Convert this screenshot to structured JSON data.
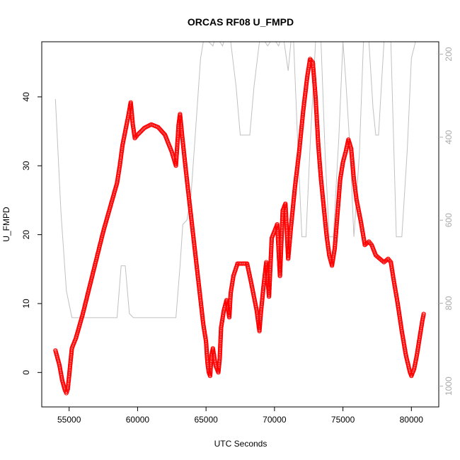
{
  "chart_data": {
    "type": "scatter",
    "title": "ORCAS RF08 U_FMPD",
    "xlabel": "UTC Seconds",
    "ylabel": "U_FMPD",
    "xlim": [
      53000,
      82000
    ],
    "ylim": [
      -5,
      48
    ],
    "x_ticks": [
      "55000",
      "60000",
      "65000",
      "70000",
      "75000",
      "80000"
    ],
    "y_ticks": [
      "0",
      "10",
      "20",
      "30",
      "40"
    ],
    "y2lim": [
      1050,
      170
    ],
    "y2_ticks": [
      "200",
      "400",
      "600",
      "800",
      "1000"
    ],
    "colors": {
      "primary": "#ff0000",
      "secondary": "#c0c0c0"
    },
    "series": [
      {
        "kind": "points",
        "color": "#ff0000",
        "points": [
          [
            54000,
            3.2
          ],
          [
            54300,
            1.0
          ],
          [
            54500,
            -1.2
          ],
          [
            54700,
            -2.6
          ],
          [
            54800,
            -3.0
          ],
          [
            54900,
            -2.4
          ],
          [
            55000,
            -0.5
          ],
          [
            55100,
            1.5
          ],
          [
            55200,
            3.5
          ],
          [
            55500,
            5.0
          ],
          [
            56000,
            8.5
          ],
          [
            56500,
            12.5
          ],
          [
            57000,
            16.5
          ],
          [
            57500,
            20.5
          ],
          [
            58000,
            24.0
          ],
          [
            58500,
            27.5
          ],
          [
            58700,
            30.0
          ],
          [
            58900,
            33.0
          ],
          [
            59100,
            35.0
          ],
          [
            59300,
            37.0
          ],
          [
            59500,
            39.2
          ],
          [
            59650,
            36.0
          ],
          [
            59800,
            34.0
          ],
          [
            60000,
            34.5
          ],
          [
            60500,
            35.5
          ],
          [
            61000,
            36.0
          ],
          [
            61500,
            35.6
          ],
          [
            62000,
            34.5
          ],
          [
            62500,
            32.0
          ],
          [
            62800,
            30.0
          ],
          [
            63000,
            36.0
          ],
          [
            63100,
            37.5
          ],
          [
            63300,
            33.5
          ],
          [
            63600,
            28.0
          ],
          [
            64000,
            21.0
          ],
          [
            64400,
            14.0
          ],
          [
            64800,
            7.0
          ],
          [
            65000,
            4.5
          ],
          [
            65100,
            1.5
          ],
          [
            65200,
            0.0
          ],
          [
            65300,
            -0.5
          ],
          [
            65400,
            2.5
          ],
          [
            65500,
            3.5
          ],
          [
            65700,
            1.0
          ],
          [
            65900,
            0.0
          ],
          [
            66000,
            2.0
          ],
          [
            66100,
            6.5
          ],
          [
            66300,
            9.0
          ],
          [
            66500,
            10.5
          ],
          [
            66700,
            8.0
          ],
          [
            66800,
            11.5
          ],
          [
            67000,
            14.0
          ],
          [
            67300,
            15.8
          ],
          [
            68000,
            15.8
          ],
          [
            68300,
            13.0
          ],
          [
            68500,
            11.0
          ],
          [
            68700,
            9.0
          ],
          [
            68900,
            6.0
          ],
          [
            69000,
            8.5
          ],
          [
            69200,
            12.5
          ],
          [
            69400,
            16.0
          ],
          [
            69600,
            11.0
          ],
          [
            69800,
            19.5
          ],
          [
            70000,
            20.5
          ],
          [
            70200,
            21.5
          ],
          [
            70400,
            14.0
          ],
          [
            70600,
            23.5
          ],
          [
            70800,
            24.5
          ],
          [
            71000,
            16.5
          ],
          [
            71200,
            21.0
          ],
          [
            71500,
            27.0
          ],
          [
            71800,
            32.0
          ],
          [
            72100,
            38.0
          ],
          [
            72400,
            43.0
          ],
          [
            72600,
            45.5
          ],
          [
            72800,
            45.0
          ],
          [
            73000,
            40.0
          ],
          [
            73200,
            33.0
          ],
          [
            73400,
            28.0
          ],
          [
            73600,
            24.0
          ],
          [
            73800,
            20.0
          ],
          [
            74000,
            17.0
          ],
          [
            74200,
            15.5
          ],
          [
            74400,
            18.0
          ],
          [
            74600,
            23.0
          ],
          [
            74800,
            28.0
          ],
          [
            75000,
            30.5
          ],
          [
            75200,
            32.0
          ],
          [
            75400,
            33.8
          ],
          [
            75600,
            32.5
          ],
          [
            75800,
            28.0
          ],
          [
            76000,
            25.0
          ],
          [
            76300,
            22.0
          ],
          [
            76600,
            18.5
          ],
          [
            76900,
            19.0
          ],
          [
            77100,
            18.5
          ],
          [
            77400,
            17.0
          ],
          [
            77700,
            16.5
          ],
          [
            78000,
            16.0
          ],
          [
            78300,
            16.5
          ],
          [
            78500,
            16.0
          ],
          [
            78700,
            13.5
          ],
          [
            79000,
            10.0
          ],
          [
            79300,
            6.0
          ],
          [
            79600,
            2.5
          ],
          [
            79900,
            0.0
          ],
          [
            80000,
            -0.5
          ],
          [
            80200,
            0.5
          ],
          [
            80400,
            2.5
          ],
          [
            80600,
            5.0
          ],
          [
            80800,
            7.5
          ],
          [
            80900,
            8.5
          ]
        ]
      },
      {
        "kind": "line",
        "color": "#c0c0c0",
        "axis": "right",
        "points": [
          [
            54000,
            308
          ],
          [
            54400,
            580
          ],
          [
            54800,
            770
          ],
          [
            55200,
            835
          ],
          [
            58500,
            835
          ],
          [
            58800,
            710
          ],
          [
            59100,
            710
          ],
          [
            59400,
            825
          ],
          [
            59700,
            835
          ],
          [
            62800,
            835
          ],
          [
            63100,
            710
          ],
          [
            63300,
            610
          ],
          [
            63600,
            600
          ],
          [
            63900,
            540
          ],
          [
            64200,
            400
          ],
          [
            64600,
            210
          ],
          [
            64800,
            170
          ],
          [
            65200,
            170
          ],
          [
            65500,
            180
          ],
          [
            65600,
            170
          ],
          [
            66000,
            170
          ],
          [
            66200,
            180
          ],
          [
            66300,
            170
          ],
          [
            66800,
            170
          ],
          [
            67200,
            280
          ],
          [
            67500,
            395
          ],
          [
            68200,
            395
          ],
          [
            68500,
            280
          ],
          [
            68900,
            170
          ],
          [
            69300,
            170
          ],
          [
            69500,
            180
          ],
          [
            69700,
            170
          ],
          [
            70100,
            170
          ],
          [
            70300,
            180
          ],
          [
            70400,
            170
          ],
          [
            70700,
            170
          ],
          [
            71000,
            240
          ],
          [
            71200,
            170
          ],
          [
            71400,
            170
          ],
          [
            71700,
            415
          ],
          [
            72000,
            640
          ],
          [
            72300,
            640
          ],
          [
            72600,
            420
          ],
          [
            73000,
            170
          ],
          [
            73400,
            170
          ],
          [
            73700,
            440
          ],
          [
            74000,
            640
          ],
          [
            74300,
            640
          ],
          [
            74700,
            400
          ],
          [
            75000,
            170
          ],
          [
            75200,
            260
          ],
          [
            75500,
            420
          ],
          [
            75800,
            640
          ],
          [
            76200,
            440
          ],
          [
            76500,
            170
          ],
          [
            76900,
            170
          ],
          [
            77200,
            330
          ],
          [
            77400,
            395
          ],
          [
            77600,
            395
          ],
          [
            77800,
            280
          ],
          [
            78000,
            170
          ],
          [
            78500,
            170
          ],
          [
            78900,
            640
          ],
          [
            79300,
            640
          ],
          [
            79700,
            430
          ],
          [
            80000,
            210
          ],
          [
            80300,
            170
          ],
          [
            81000,
            170
          ]
        ]
      }
    ]
  }
}
